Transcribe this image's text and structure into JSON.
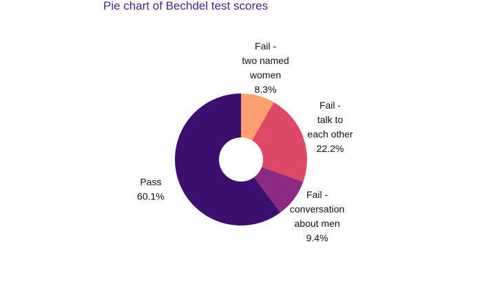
{
  "chart_data": {
    "type": "pie",
    "title": "Pie chart of Bechdel test scores",
    "donut": true,
    "start": "top",
    "direction": "clockwise",
    "slices": [
      {
        "lines": [
          "Fail -",
          "two named",
          "women"
        ],
        "pct_label": "8.3%",
        "value": 8.3,
        "color": "#fe9f6d"
      },
      {
        "lines": [
          "Fail -",
          "talk to",
          "each other"
        ],
        "pct_label": "22.2%",
        "value": 22.2,
        "color": "#de4968"
      },
      {
        "lines": [
          "Fail -",
          "conversation",
          "about men"
        ],
        "pct_label": "9.4%",
        "value": 9.4,
        "color": "#8c2981"
      },
      {
        "lines": [
          "Pass"
        ],
        "pct_label": "60.1%",
        "value": 60.1,
        "color": "#3b0f70"
      }
    ]
  },
  "colors": {
    "title": "#4b2483",
    "background": "#ffffff"
  }
}
